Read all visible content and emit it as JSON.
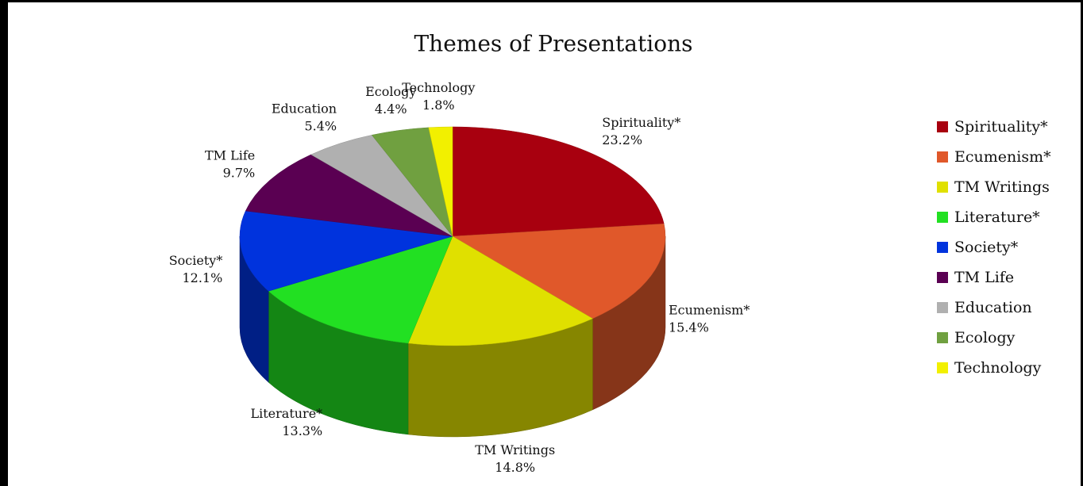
{
  "chart_data": {
    "type": "pie",
    "title": "Themes of Presentations",
    "categories": [
      "Spirituality*",
      "Ecumenism*",
      "TM Writings",
      "Literature*",
      "Society*",
      "TM Life",
      "Education",
      "Ecology",
      "Technology"
    ],
    "values": [
      23.2,
      15.4,
      14.8,
      13.3,
      12.1,
      9.7,
      5.4,
      4.4,
      1.8
    ],
    "value_labels": [
      "23.2%",
      "15.4%",
      "14.8%",
      "13.3%",
      "12.1%",
      "9.7%",
      "5.4%",
      "4.4%",
      "1.8%"
    ],
    "colors": [
      "#a8000f",
      "#e0582a",
      "#e0e000",
      "#22e022",
      "#0033dd",
      "#5a0052",
      "#b0b0b0",
      "#70a040",
      "#f2f000"
    ],
    "legend": "right"
  }
}
